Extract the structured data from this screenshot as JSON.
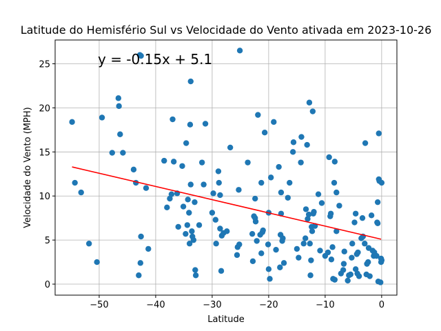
{
  "chart_data": {
    "type": "scatter",
    "title": "Latitude do Hemisfério Sul vs Velocidade do Vento ativada em 2023-10-26",
    "x_label": "Latitude",
    "y_label": "Velocidade do Vento (MPH)",
    "annotation": "y = -0.15x + 5.1",
    "annotation_color": "red",
    "color": "#1f77b4",
    "grid": true,
    "xlim": [
      -57.8,
      2.7
    ],
    "ylim": [
      -1.25,
      27.7
    ],
    "xticks": [
      {
        "value": -50,
        "label": "−50"
      },
      {
        "value": -40,
        "label": "−40"
      },
      {
        "value": -30,
        "label": "−30"
      },
      {
        "value": -20,
        "label": "−20"
      },
      {
        "value": -10,
        "label": "−10"
      },
      0
    ],
    "yticks": [
      0,
      5,
      10,
      15,
      20,
      25
    ],
    "regression": {
      "color": "red",
      "x": [
        -54.8,
        -0.1
      ],
      "y": [
        13.3,
        5.1
      ]
    },
    "x": [
      -54.8,
      -54.3,
      -53.2,
      -51.8,
      -50.4,
      -49.5,
      -47.7,
      -46.6,
      -46.5,
      -46.3,
      -45.8,
      -43.9,
      -43.5,
      -42.8,
      -42.6,
      -43.0,
      -42.7,
      -42.6,
      -41.7,
      -41.3,
      -38.5,
      -38.0,
      -37.5,
      -37.2,
      -37.0,
      -36.8,
      -36.2,
      -36.0,
      -35.3,
      -35.1,
      -34.7,
      -34.6,
      -34.4,
      -34.3,
      -34.1,
      -34.0,
      -33.9,
      -33.8,
      -33.8,
      -33.6,
      -33.5,
      -33.3,
      -33.1,
      -33.0,
      -32.9,
      -32.3,
      -31.8,
      -31.5,
      -31.2,
      -30.0,
      -29.8,
      -29.4,
      -29.3,
      -28.9,
      -28.8,
      -28.6,
      -28.6,
      -28.3,
      -28.4,
      -28.0,
      -27.4,
      -26.8,
      -25.6,
      -25.5,
      -25.3,
      -25.2,
      -25.1,
      -23.7,
      -22.9,
      -22.8,
      -22.6,
      -22.4,
      -22.4,
      -22.3,
      -22.1,
      -21.9,
      -21.5,
      -21.3,
      -21.3,
      -21.1,
      -21.0,
      -20.7,
      -20.1,
      -20.0,
      -20.0,
      -19.8,
      -19.6,
      -19.1,
      -18.7,
      -18.2,
      -18.0,
      -17.9,
      -17.8,
      -17.8,
      -17.6,
      -17.5,
      -17.3,
      -16.6,
      -16.3,
      -15.7,
      -15.6,
      -15.0,
      -14.7,
      -14.3,
      -14.2,
      -13.8,
      -13.5,
      -13.4,
      -13.2,
      -13.1,
      -12.9,
      -12.8,
      -12.7,
      -12.6,
      -12.5,
      -12.4,
      -12.3,
      -12.2,
      -12.1,
      -12.0,
      -11.8,
      -11.2,
      -10.9,
      -10.6,
      -10.0,
      -9.5,
      -9.3,
      -9.1,
      -9.0,
      -8.9,
      -8.7,
      -8.6,
      -8.4,
      -8.3,
      -8.3,
      -8.0,
      -8.0,
      -7.5,
      -7.2,
      -6.8,
      -6.7,
      -6.6,
      -6.0,
      -5.8,
      -5.5,
      -5.3,
      -5.2,
      -4.8,
      -4.6,
      -4.6,
      -4.4,
      -4.3,
      -4.2,
      -4.0,
      -3.6,
      -3.4,
      -3.3,
      -3.0,
      -2.9,
      -2.7,
      -2.6,
      -2.4,
      -2.3,
      -2.1,
      -1.8,
      -1.6,
      -1.4,
      -1.3,
      -0.9,
      -0.8,
      -0.7,
      -0.7,
      -0.6,
      -0.5,
      -0.5,
      -0.4,
      -0.2,
      -0.1,
      -0.1,
      0.0,
      0.0
    ],
    "values": [
      18.4,
      11.5,
      10.4,
      4.6,
      2.5,
      18.9,
      14.9,
      21.1,
      20.2,
      17.0,
      14.9,
      13.0,
      11.5,
      26.0,
      25.9,
      1.0,
      2.4,
      5.4,
      10.9,
      4.0,
      14.0,
      8.7,
      9.7,
      10.2,
      18.7,
      13.9,
      10.3,
      6.5,
      13.4,
      8.8,
      5.7,
      16.0,
      6.7,
      9.6,
      8.1,
      4.6,
      18.1,
      23.0,
      11.3,
      6.0,
      5.4,
      5.0,
      9.3,
      1.6,
      1.0,
      6.7,
      13.8,
      11.3,
      18.2,
      8.1,
      10.3,
      7.3,
      4.6,
      12.8,
      11.5,
      10.1,
      6.3,
      5.5,
      1.5,
      5.8,
      6.0,
      15.5,
      3.3,
      4.2,
      10.7,
      4.5,
      26.5,
      13.8,
      5.7,
      2.6,
      7.7,
      7.5,
      9.7,
      7.1,
      4.9,
      19.2,
      5.6,
      3.5,
      11.5,
      5.9,
      6.1,
      17.2,
      4.5,
      8.1,
      1.7,
      0.6,
      12.1,
      18.4,
      3.9,
      13.3,
      1.9,
      5.6,
      8.0,
      10.4,
      4.9,
      5.2,
      2.4,
      9.8,
      11.5,
      15.0,
      16.1,
      4.0,
      3.0,
      13.8,
      16.7,
      4.6,
      5.2,
      8.5,
      15.8,
      7.4,
      7.9,
      20.6,
      4.6,
      1.0,
      2.7,
      6.5,
      6.0,
      19.6,
      8.0,
      8.2,
      6.6,
      10.2,
      3.8,
      9.2,
      3.2,
      3.6,
      14.4,
      7.7,
      8.0,
      2.8,
      4.2,
      0.6,
      11.5,
      0.5,
      13.9,
      10.4,
      6.0,
      8.9,
      1.2,
      1.6,
      2.3,
      3.7,
      0.4,
      1.0,
      1.1,
      3.0,
      4.6,
      7.0,
      8.0,
      1.7,
      3.4,
      1.2,
      3.6,
      0.9,
      5.2,
      7.5,
      5.4,
      4.6,
      16.0,
      1.1,
      2.3,
      2.5,
      4.1,
      0.9,
      7.8,
      3.8,
      3.2,
      3.6,
      3.2,
      7.0,
      6.9,
      9.3,
      0.3,
      17.1,
      11.9,
      11.7,
      0.2,
      2.5,
      2.9,
      11.5,
      2.7
    ]
  }
}
